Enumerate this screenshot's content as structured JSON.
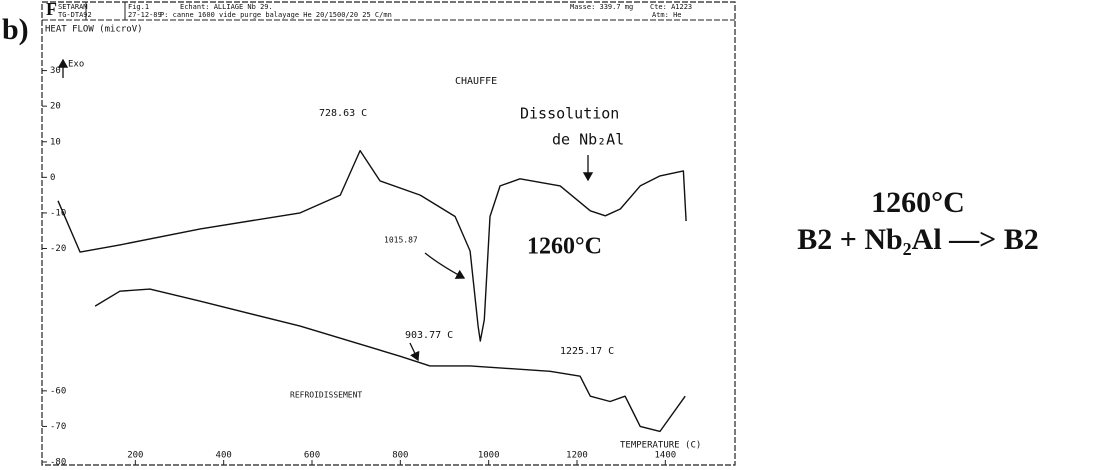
{
  "panel_label": "b)",
  "header": {
    "logo": "F",
    "maker": "SETARAM",
    "model": "TG-DTA92",
    "fig": "Fig.1",
    "date": "27-12-89",
    "sample": "Echant: ALLIAGE Nb 29.",
    "conditions": "P: canne 1600   vide purge balayage He    20/1500/20   25 C/mn",
    "mass": "Masse:  339.7 mg",
    "cte": "Cte: A1223",
    "atm": "Atm: He"
  },
  "side_text": [
    "1260°C",
    "B2 + Nb₂Al —> B2"
  ],
  "chart_data": {
    "type": "line",
    "ylabel": "HEAT FLOW (microV)",
    "xlabel": "TEMPERATURE (C)",
    "exo": "Exo",
    "xlim": [
      0,
      1560
    ],
    "ylim": [
      -80,
      40
    ],
    "xticks": [
      200,
      400,
      600,
      800,
      1000,
      1200,
      1400
    ],
    "yticks": [
      -80,
      -70,
      -60,
      -20,
      -10,
      0,
      10,
      20,
      30
    ],
    "annotations": [
      "CHAUFFE",
      "728.63 C",
      "Dissolution",
      "de Nb₂Al",
      "1015.87",
      "1260°C",
      "903.77 C",
      "1225.17 C",
      "REFROIDISSEMENT"
    ],
    "series": [
      {
        "name": "CHAUFFE",
        "color": "#111111",
        "x": [
          25,
          75,
          165,
          347,
          573,
          664,
          709,
          754,
          845,
          924,
          958,
          976,
          981,
          990,
          1003,
          1026,
          1071,
          1162,
          1230,
          1264,
          1298,
          1343,
          1388,
          1441,
          1447
        ],
        "values": [
          -6.6,
          -21,
          -19,
          -14.5,
          -10,
          -5,
          7.5,
          -1,
          -5,
          -11,
          -20.7,
          -41.8,
          -46,
          -40,
          -11,
          -2.4,
          -0.4,
          -2.4,
          -9.4,
          -10.8,
          -8.9,
          -2.4,
          0.4,
          1.8,
          -12.3
        ]
      },
      {
        "name": "REFROIDISSEMENT",
        "color": "#111111",
        "x": [
          109,
          165,
          233,
          347,
          573,
          800,
          867,
          958,
          1139,
          1207,
          1230,
          1275,
          1309,
          1343,
          1388,
          1445
        ],
        "values": [
          -36.2,
          -32,
          -31.4,
          -34.8,
          -41.8,
          -50.3,
          -53,
          -53,
          -54.5,
          -55.9,
          -61.5,
          -63,
          -61.5,
          -70,
          -71.4,
          -61.5
        ]
      }
    ]
  }
}
